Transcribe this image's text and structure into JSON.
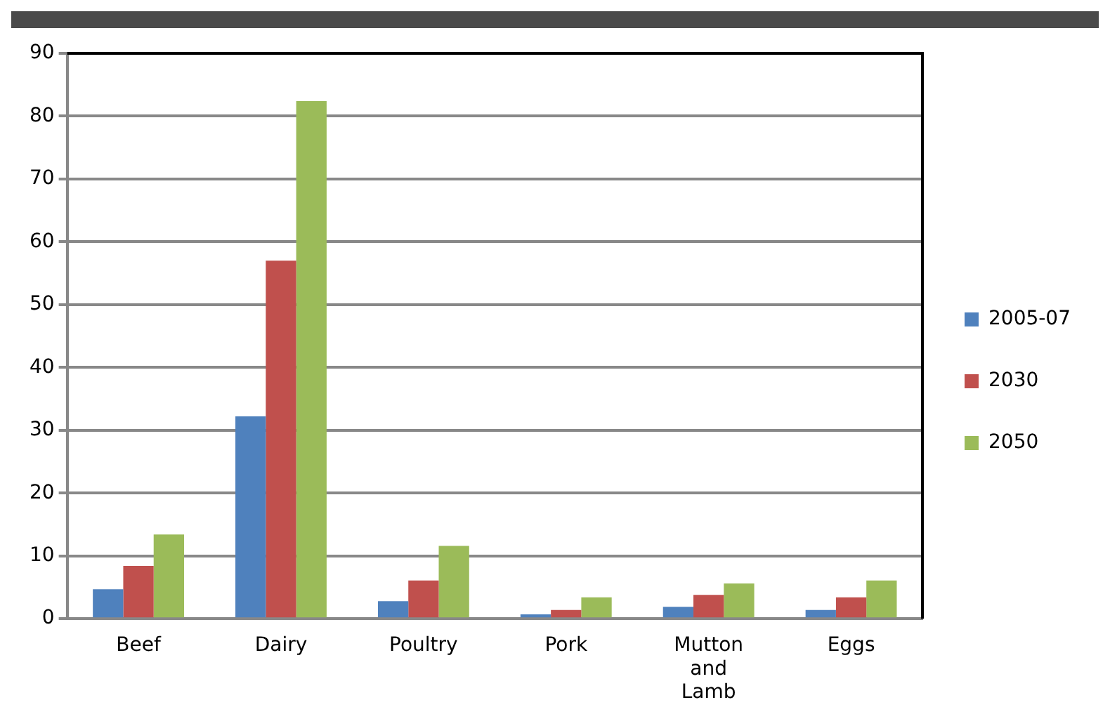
{
  "chart_data": {
    "type": "bar",
    "categories": [
      "Beef",
      "Dairy",
      "Poultry",
      "Pork",
      "Mutton and Lamb",
      "Eggs"
    ],
    "series": [
      {
        "name": "2005-07",
        "color": "#4f81bd",
        "values": [
          4.7,
          32.2,
          2.8,
          0.7,
          1.9,
          1.4
        ]
      },
      {
        "name": "2030",
        "color": "#c0504d",
        "values": [
          8.4,
          57.0,
          6.1,
          1.4,
          3.8,
          3.4
        ]
      },
      {
        "name": "2050",
        "color": "#9bbb59",
        "values": [
          13.4,
          82.4,
          11.6,
          3.4,
          5.6,
          6.1
        ]
      }
    ],
    "ylim": [
      0,
      90
    ],
    "yticks": [
      0,
      10,
      20,
      30,
      40,
      50,
      60,
      70,
      80,
      90
    ],
    "grid": "y",
    "legend": "right"
  }
}
